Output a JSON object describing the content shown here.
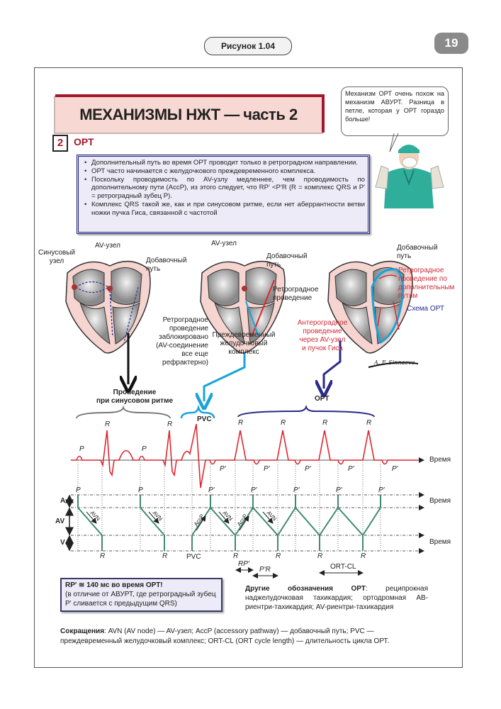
{
  "header": {
    "figure_label": "Рисунок 1.04",
    "page_number": "19"
  },
  "title": "МЕХАНИЗМЫ НЖТ — часть 2",
  "speech_bubble": "Механизм ОРТ очень похож на механизм АВУРТ. Разница в петле, которая у ОРТ гораздо больше!",
  "section": {
    "number": "2",
    "title": "ОРТ"
  },
  "bullets": [
    "Дополнительный путь во время ОРТ проводит только в ретроградном направлении.",
    "ОРТ часто начинается с желудочкового преждевременного комплекса.",
    "Поскольку проводимость по AV-узлу медленнее, чем проводимость по дополнительному пути (AccP), из этого следует, что RP' <P'R (R = комплекс QRS и P' = ретроградный зубец P).",
    "Комплекс QRS такой же, как и при синусовом ритме, если нет аберрантности ветви ножки пучка Гиса, связанной с частотой"
  ],
  "hearts": {
    "heart1": {
      "sinus_node": "Синусовый\nузел",
      "av_node": "AV-узел",
      "accessory_pathway": "Добавочный\nпуть"
    },
    "heart2": {
      "av_node": "AV-узел",
      "accessory_pathway": "Добавочный\nпуть",
      "retrograde": "Ретроградное\nпроведение",
      "blocked": "Ретроградное\nпроведение\nзаблокировано\n(AV-соединение\nвсе еще\nрефрактерно)",
      "pvc": "Преждевременный\nжелудочковый\nкомплекс"
    },
    "heart3": {
      "accessory_pathway": "Добавочный\nпуть",
      "retrograde_accessory": "Ретроградное\nпроведение по\nдополнительным\nпутям",
      "ort_scheme": "Схема ОРТ",
      "anterograde": "Антероградное\nпроведение\nчерез AV-узел\nи пучок Гиса"
    },
    "signature": "A. F. Sinnaeve"
  },
  "ecg": {
    "sinus_label": "Проведение\nпри синусовом ритме",
    "pvc_label": "PVC",
    "ort_label": "ОРТ",
    "time_label": "Время",
    "R": "R",
    "P": "P",
    "P_prime": "P'",
    "colors": {
      "ecg": "#e0262e",
      "ladder": "#3f8a6e",
      "sinus_arrow": "#111111",
      "pvc_arrow": "#1aa3d9",
      "ort_arrow": "#2a2a8a"
    }
  },
  "ladder": {
    "A": "A",
    "AV": "AV",
    "V": "V",
    "AVN": "AVN",
    "AccP": "AccP",
    "PVC": "PVC",
    "RP": "RP'",
    "PR": "P'R",
    "ORT_CL": "ORT-CL"
  },
  "note": {
    "bold": "RP' ≅ 140 мс во время ОРТ!",
    "text": "(в отличие от АВУРТ, где ретроградный зубец P' сливается с предыдущим QRS)"
  },
  "other_names": {
    "bold": "Другие обозначения ОРТ",
    "text": ": реципрокная наджелудочковая тахикардия; ортодромная АВ-риентри-тахикардия; AV-риентри-тахикардия"
  },
  "abbreviations": {
    "bold": "Сокращения",
    "text": ": AVN (AV node) — AV-узел; AccP (accessory pathway) — добавочный путь; PVC — преждевременный желудочковый комплекс; ORT-CL (ORT cycle length) — длительность цикла ОРТ."
  }
}
